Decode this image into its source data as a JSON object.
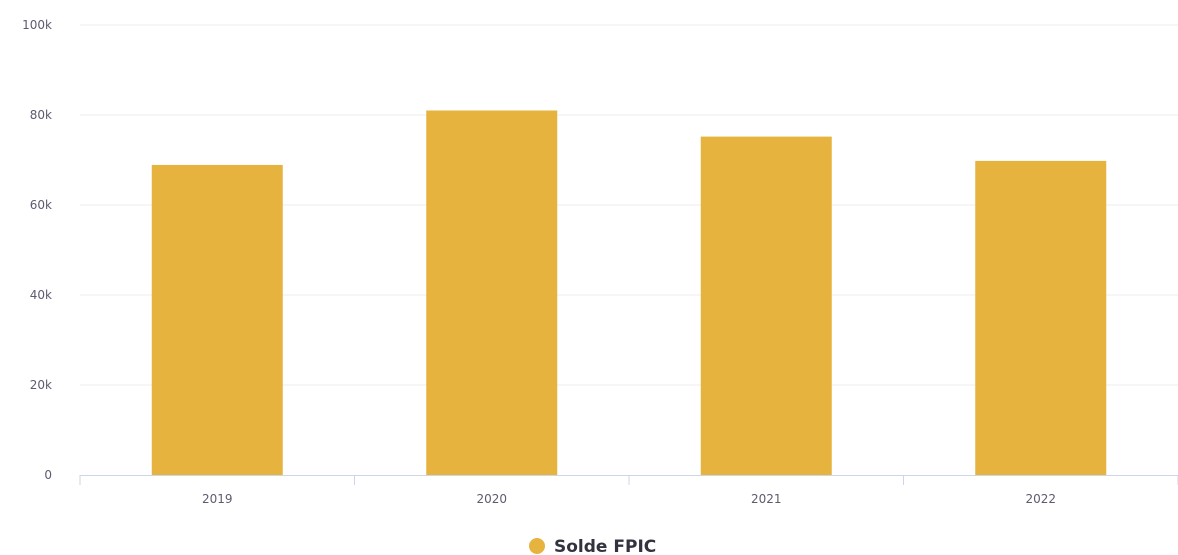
{
  "chart_data": {
    "type": "bar",
    "categories": [
      "2019",
      "2020",
      "2021",
      "2022"
    ],
    "series": [
      {
        "name": "Solde FPIC",
        "color": "#E6B33E",
        "values": [
          68900,
          81000,
          75200,
          69800
        ]
      }
    ],
    "y_ticks": [
      "0",
      "20k",
      "40k",
      "60k",
      "80k",
      "100k"
    ],
    "y_tick_values": [
      0,
      20000,
      40000,
      60000,
      80000,
      100000
    ],
    "ylim": [
      0,
      100000
    ],
    "grid": true,
    "legend": {
      "position": "bottom-center"
    }
  }
}
